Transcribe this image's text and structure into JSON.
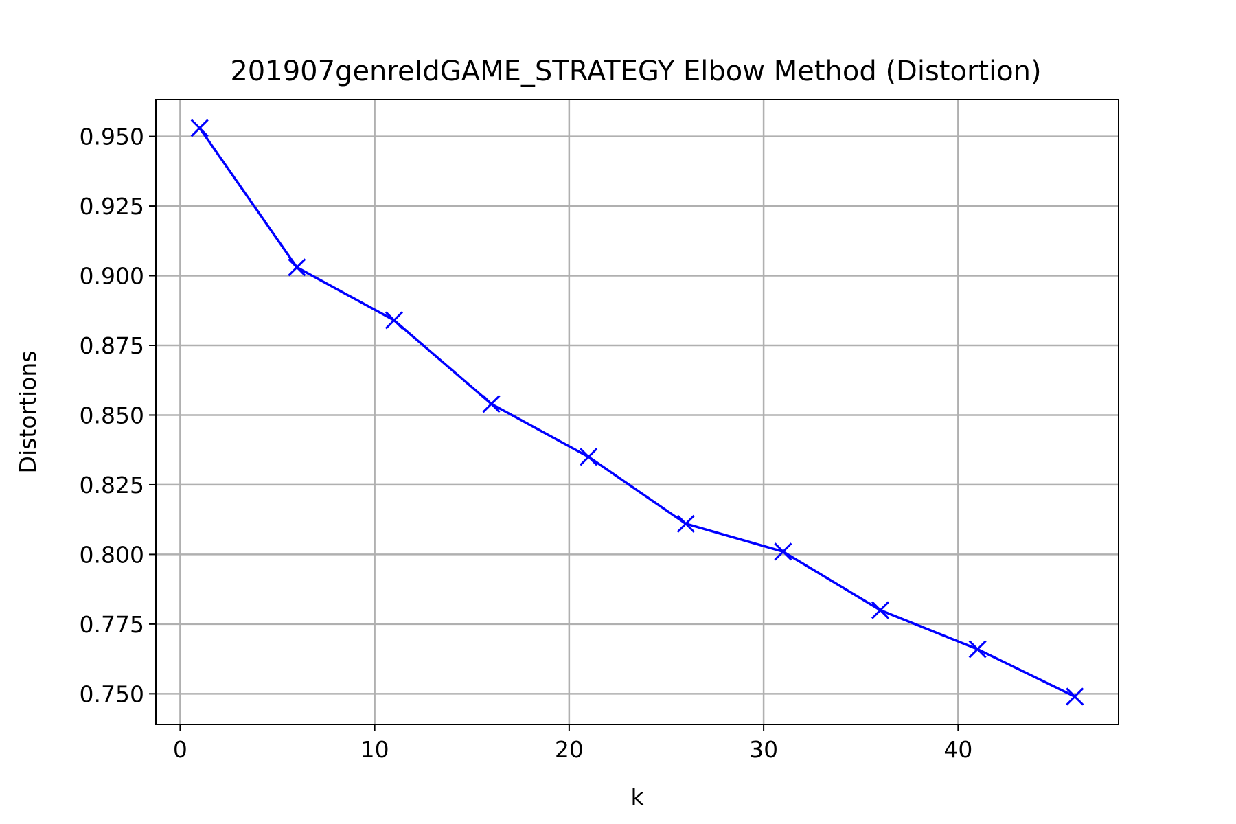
{
  "chart_data": {
    "type": "line",
    "title": "201907genreIdGAME_STRATEGY Elbow Method (Distortion)",
    "xlabel": "k",
    "ylabel": "Distortions",
    "xlim": [
      -1.25,
      48.25
    ],
    "ylim": [
      0.739,
      0.9632
    ],
    "xticks": [
      0,
      10,
      20,
      30,
      40
    ],
    "yticks": [
      0.75,
      0.775,
      0.8,
      0.825,
      0.85,
      0.875,
      0.9,
      0.925,
      0.95
    ],
    "grid": true,
    "series": [
      {
        "color": "#0000ff",
        "marker": "x",
        "x": [
          1,
          6,
          11,
          16,
          21,
          26,
          31,
          36,
          41,
          46
        ],
        "y": [
          0.953,
          0.903,
          0.884,
          0.854,
          0.835,
          0.811,
          0.801,
          0.78,
          0.766,
          0.749
        ]
      }
    ]
  }
}
